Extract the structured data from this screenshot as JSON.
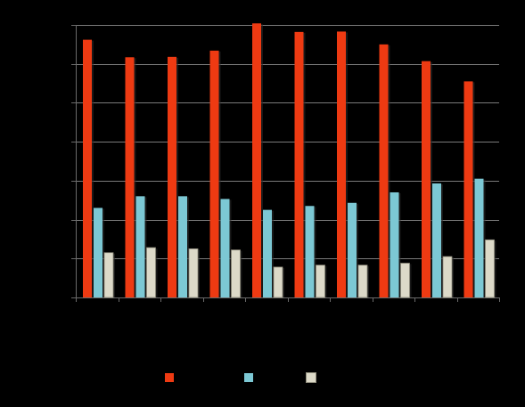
{
  "chart_data": {
    "type": "bar",
    "title": "",
    "xlabel": "",
    "ylabel": "",
    "ylim": [
      0,
      7
    ],
    "yticks": [
      0,
      1,
      2,
      3,
      4,
      5,
      6,
      7
    ],
    "categories": [
      "",
      "",
      "",
      "",
      "",
      "",
      "",
      "",
      "",
      ""
    ],
    "grid": true,
    "legend_position": "bottom",
    "series": [
      {
        "name": "",
        "color": "#ee3a12",
        "values": [
          6.62,
          6.17,
          6.18,
          6.34,
          7.04,
          6.82,
          6.83,
          6.5,
          6.07,
          5.55
        ]
      },
      {
        "name": "",
        "color": "#7cc8d4",
        "values": [
          2.3,
          2.6,
          2.6,
          2.53,
          2.25,
          2.35,
          2.43,
          2.7,
          2.93,
          3.05
        ]
      },
      {
        "name": "",
        "color": "#dcd9c8",
        "values": [
          1.15,
          1.28,
          1.25,
          1.22,
          0.78,
          0.83,
          0.83,
          0.88,
          1.05,
          1.48
        ]
      }
    ]
  }
}
